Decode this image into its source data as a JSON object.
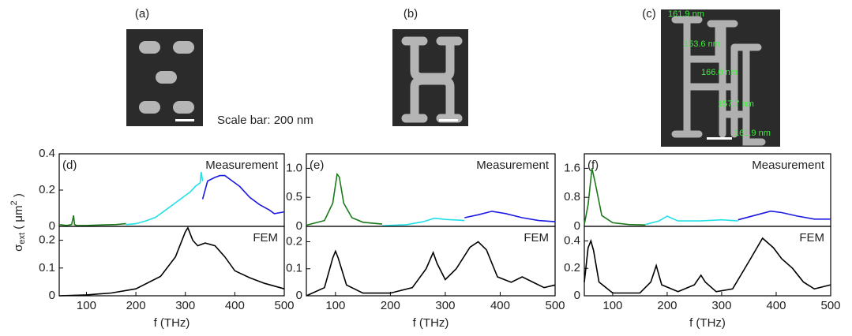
{
  "images": [
    {
      "label": "(a)"
    },
    {
      "label": "(b)"
    },
    {
      "label": "(c)",
      "annotations": [
        "161.9 nm",
        "153.6 nm",
        "166.0 nm",
        "157.7 nm",
        "161.9 nm"
      ]
    }
  ],
  "scale_bar_text": "Scale bar: 200 nm",
  "ylabel_parts": [
    "σ",
    "ext",
    " ( μm",
    "2",
    " )"
  ],
  "chart_data": [
    {
      "type": "line",
      "panel": "(d)",
      "annotation": "Measurement",
      "xlim": [
        45,
        500
      ],
      "ylim": [
        0,
        0.4
      ],
      "yticks": [
        0,
        0.2,
        0.4
      ],
      "series": [
        {
          "color": "#1a7a1a",
          "x": [
            45,
            60,
            70,
            74,
            76,
            80,
            100,
            130,
            160,
            180
          ],
          "values": [
            0.01,
            0.005,
            0.01,
            0.06,
            0.01,
            0.005,
            0.005,
            0.008,
            0.01,
            0.015
          ]
        },
        {
          "color": "#22e0e8",
          "x": [
            180,
            200,
            220,
            240,
            260,
            280,
            300,
            310,
            320,
            330,
            332,
            335
          ],
          "values": [
            0.01,
            0.015,
            0.03,
            0.05,
            0.09,
            0.13,
            0.17,
            0.19,
            0.22,
            0.24,
            0.3,
            0.25
          ]
        },
        {
          "color": "#1a1ae0",
          "x": [
            335,
            345,
            360,
            370,
            380,
            395,
            410,
            430,
            450,
            470,
            480,
            500
          ],
          "values": [
            0.15,
            0.25,
            0.27,
            0.28,
            0.28,
            0.25,
            0.22,
            0.16,
            0.12,
            0.09,
            0.07,
            0.08
          ]
        }
      ]
    },
    {
      "type": "line",
      "annotation": "FEM",
      "xlabel": "f (THz)",
      "xlim": [
        45,
        500
      ],
      "ylim": [
        0,
        0.25
      ],
      "yticks": [
        0,
        0.1,
        0.2
      ],
      "xticks": [
        100,
        200,
        300,
        400,
        500
      ],
      "series": [
        {
          "color": "#000000",
          "x": [
            45,
            100,
            150,
            200,
            250,
            280,
            300,
            305,
            315,
            325,
            340,
            360,
            380,
            400,
            430,
            460,
            500
          ],
          "values": [
            0,
            0.003,
            0.01,
            0.025,
            0.07,
            0.14,
            0.23,
            0.245,
            0.2,
            0.18,
            0.19,
            0.18,
            0.14,
            0.09,
            0.065,
            0.045,
            0.025
          ]
        }
      ]
    },
    {
      "type": "line",
      "panel": "(e)",
      "annotation": "Measurement",
      "xlim": [
        47,
        500
      ],
      "ylim": [
        0,
        1.25
      ],
      "yticks": [
        0,
        0.5,
        {
          "value": 1,
          "label": "1.0"
        }
      ],
      "series": [
        {
          "color": "#1a7a1a",
          "x": [
            47,
            80,
            95,
            103,
            107,
            115,
            130,
            150,
            185
          ],
          "values": [
            0.02,
            0.1,
            0.4,
            0.9,
            0.85,
            0.4,
            0.15,
            0.07,
            0.04
          ]
        },
        {
          "color": "#22e0e8",
          "x": [
            185,
            230,
            260,
            280,
            300,
            320,
            335
          ],
          "values": [
            0.01,
            0.03,
            0.08,
            0.14,
            0.12,
            0.11,
            0.1
          ]
        },
        {
          "color": "#1a1ae0",
          "x": [
            335,
            360,
            385,
            410,
            440,
            470,
            500
          ],
          "values": [
            0.15,
            0.2,
            0.26,
            0.22,
            0.15,
            0.1,
            0.08
          ]
        }
      ]
    },
    {
      "type": "line",
      "annotation": "FEM",
      "xlabel": "f (THz)",
      "xlim": [
        47,
        500
      ],
      "ylim": [
        0,
        0.257
      ],
      "yticks": [
        0,
        0.1,
        0.2
      ],
      "xticks": [
        100,
        200,
        300,
        400,
        500
      ],
      "series": [
        {
          "color": "#000000",
          "x": [
            47,
            80,
            95,
            100,
            105,
            120,
            150,
            200,
            240,
            265,
            278,
            285,
            300,
            320,
            345,
            360,
            375,
            395,
            420,
            440,
            460,
            480,
            500
          ],
          "values": [
            0,
            0.03,
            0.14,
            0.165,
            0.14,
            0.04,
            0.01,
            0.01,
            0.03,
            0.1,
            0.16,
            0.12,
            0.06,
            0.1,
            0.18,
            0.2,
            0.17,
            0.07,
            0.05,
            0.07,
            0.05,
            0.03,
            0.04
          ]
        }
      ]
    },
    {
      "type": "line",
      "panel": "(f)",
      "annotation": "Measurement",
      "xlim": [
        48,
        500
      ],
      "ylim": [
        0,
        2
      ],
      "yticks": [
        0,
        0.8,
        1.6
      ],
      "series": [
        {
          "color": "#1a7a1a",
          "x": [
            48,
            55,
            62,
            68,
            80,
            100,
            130,
            160
          ],
          "values": [
            0.05,
            0.6,
            1.6,
            1.2,
            0.3,
            0.1,
            0.05,
            0.04
          ]
        },
        {
          "color": "#22e0e8",
          "x": [
            160,
            185,
            200,
            220,
            260,
            300,
            330
          ],
          "values": [
            0.05,
            0.15,
            0.28,
            0.15,
            0.15,
            0.18,
            0.15
          ]
        },
        {
          "color": "#1a1ae0",
          "x": [
            330,
            360,
            390,
            410,
            440,
            470,
            500
          ],
          "values": [
            0.18,
            0.3,
            0.42,
            0.38,
            0.28,
            0.2,
            0.2
          ]
        }
      ]
    },
    {
      "type": "line",
      "annotation": "FEM",
      "xlabel": "f (THz)",
      "xlim": [
        48,
        500
      ],
      "ylim": [
        0,
        0.506
      ],
      "yticks": [
        0,
        0.2,
        0.4
      ],
      "xticks": [
        100,
        200,
        300,
        400,
        500
      ],
      "series": [
        {
          "color": "#000000",
          "x": [
            48,
            55,
            60,
            65,
            75,
            100,
            150,
            170,
            180,
            190,
            220,
            250,
            262,
            270,
            290,
            320,
            350,
            375,
            395,
            410,
            430,
            450,
            470,
            500
          ],
          "values": [
            0.1,
            0.35,
            0.4,
            0.33,
            0.1,
            0.02,
            0.02,
            0.1,
            0.22,
            0.08,
            0.03,
            0.08,
            0.15,
            0.1,
            0.03,
            0.05,
            0.25,
            0.42,
            0.35,
            0.27,
            0.2,
            0.1,
            0.05,
            0.08
          ]
        }
      ]
    }
  ]
}
